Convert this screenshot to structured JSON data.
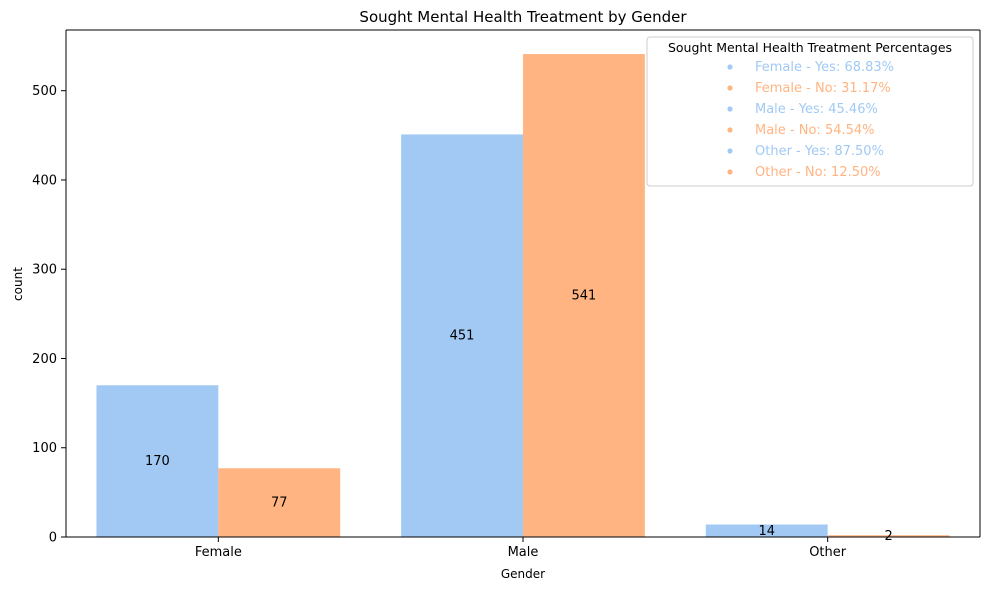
{
  "chart_data": {
    "type": "bar",
    "title": "Sought Mental Health Treatment by Gender",
    "xlabel": "Gender",
    "ylabel": "count",
    "categories": [
      "Female",
      "Male",
      "Other"
    ],
    "series": [
      {
        "values": [
          170,
          451,
          14
        ],
        "color": "#a1c9f4"
      },
      {
        "values": [
          77,
          541,
          2
        ],
        "color": "#ffb482"
      }
    ],
    "ylim": [
      0,
      568
    ],
    "yticks": [
      0,
      100,
      200,
      300,
      400,
      500
    ],
    "grid": false,
    "legend": {
      "title": "Sought Mental Health Treatment Percentages",
      "placement": "top-right",
      "entries": [
        {
          "label": "Female - Yes: 68.83%",
          "color": "#a1c9f4"
        },
        {
          "label": "Female - No: 31.17%",
          "color": "#ffb482"
        },
        {
          "label": "Male - Yes: 45.46%",
          "color": "#a1c9f4"
        },
        {
          "label": "Male - No: 54.54%",
          "color": "#ffb482"
        },
        {
          "label": "Other - Yes: 87.50%",
          "color": "#a1c9f4"
        },
        {
          "label": "Other - No: 12.50%",
          "color": "#ffb482"
        }
      ]
    }
  }
}
